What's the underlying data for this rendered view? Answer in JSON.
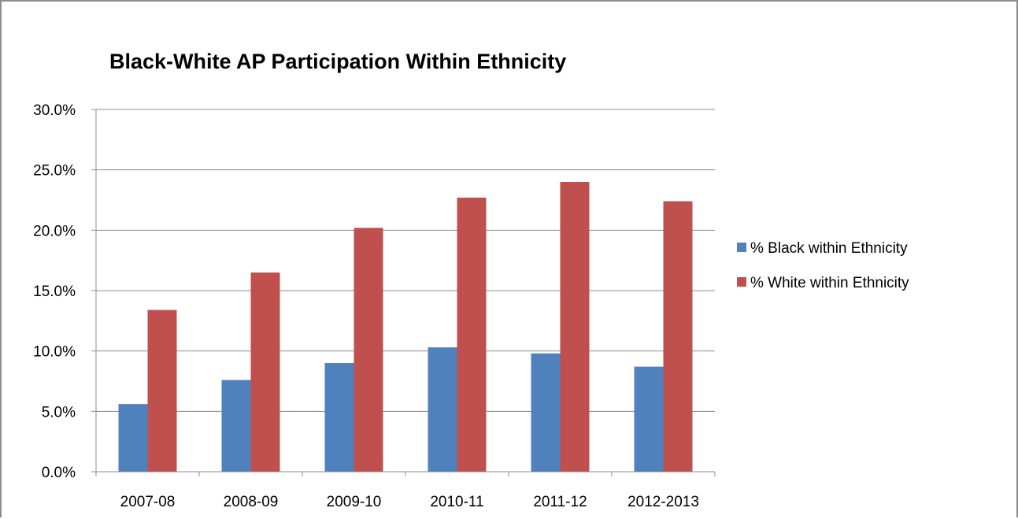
{
  "chart_data": {
    "type": "bar",
    "title": "Black-White AP Participation Within Ethnicity",
    "xlabel": "",
    "ylabel": "",
    "categories": [
      "2007-08",
      "2008-09",
      "2009-10",
      "2010-11",
      "2011-12",
      "2012-2013"
    ],
    "series": [
      {
        "name": "% Black within Ethnicity",
        "color": "#4f81bd",
        "values": [
          5.6,
          7.6,
          9.0,
          10.3,
          9.8,
          8.7
        ]
      },
      {
        "name": "% White within Ethnicity",
        "color": "#c0504d",
        "values": [
          13.4,
          16.5,
          20.2,
          22.7,
          24.0,
          22.4
        ]
      }
    ],
    "ylim": [
      0,
      30
    ],
    "yticks": [
      0,
      5,
      10,
      15,
      20,
      25,
      30
    ],
    "ytick_labels": [
      "0.0%",
      "5.0%",
      "10.0%",
      "15.0%",
      "20.0%",
      "25.0%",
      "30.0%"
    ],
    "grid": true,
    "legend_position": "right"
  }
}
